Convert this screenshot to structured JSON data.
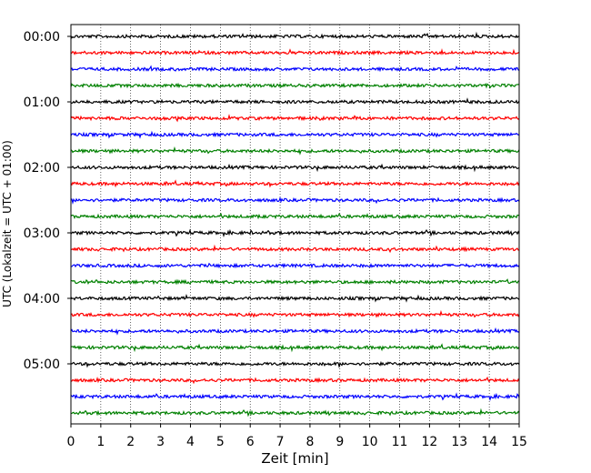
{
  "chart_data": {
    "type": "line",
    "title": "",
    "xlabel": "Zeit  [min]",
    "ylabel": "UTC (Lokalzeit = UTC + 01:00)",
    "xlim": [
      0,
      15
    ],
    "x_ticks": [
      "0",
      "1",
      "2",
      "3",
      "4",
      "5",
      "6",
      "7",
      "8",
      "9",
      "10",
      "11",
      "12",
      "13",
      "14",
      "15"
    ],
    "y_tick_labels": [
      "00:00",
      "01:00",
      "02:00",
      "03:00",
      "04:00",
      "05:00"
    ],
    "grid": "vertical dotted at each minute",
    "trace_colors": [
      "#000000",
      "#ff0000",
      "#0000ff",
      "#008000"
    ],
    "trace_count": 24,
    "minutes_per_trace": 15,
    "seed": 12345
  }
}
